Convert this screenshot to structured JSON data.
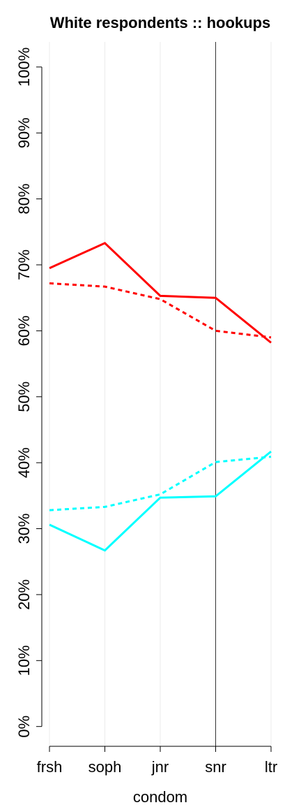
{
  "chart_data": {
    "type": "line",
    "title": "White respondents :: hookups",
    "x_label": "condom",
    "categories": [
      "frsh",
      "soph",
      "jnr",
      "snr",
      "ltr"
    ],
    "series": [
      {
        "color": "#ff0000",
        "dashed": false,
        "values": [
          69.5,
          73.3,
          65.3,
          65.0,
          58.2
        ]
      },
      {
        "color": "#ff0000",
        "dashed": true,
        "values": [
          67.2,
          66.7,
          64.8,
          60.0,
          59.0
        ]
      },
      {
        "color": "#00ffff",
        "dashed": false,
        "values": [
          30.6,
          26.7,
          34.7,
          34.9,
          41.7
        ]
      },
      {
        "color": "#00ffff",
        "dashed": true,
        "values": [
          32.8,
          33.3,
          35.2,
          40.1,
          40.9
        ]
      }
    ],
    "ylim": [
      -3,
      103.8
    ],
    "yticks": [
      {
        "value": 0,
        "label": "0%"
      },
      {
        "value": 10,
        "label": "10%"
      },
      {
        "value": 20,
        "label": "20%"
      },
      {
        "value": 30,
        "label": "30%"
      },
      {
        "value": 40,
        "label": "40%"
      },
      {
        "value": 50,
        "label": "50%"
      },
      {
        "value": 60,
        "label": "60%"
      },
      {
        "value": 70,
        "label": "70%"
      },
      {
        "value": 80,
        "label": "80%"
      },
      {
        "value": 90,
        "label": "90%"
      },
      {
        "value": 100,
        "label": "100%"
      }
    ],
    "grid": true,
    "highlight_category_index": 3
  }
}
